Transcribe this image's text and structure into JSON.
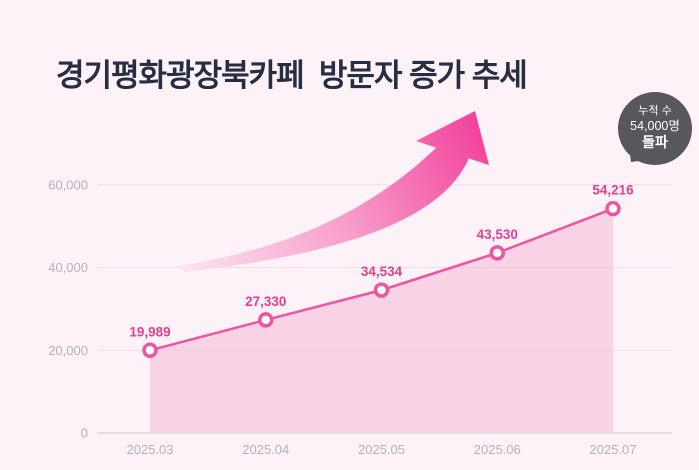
{
  "title": "경기평화광장북카페  방문자 증가 추세",
  "badge": {
    "line1": "누적 수",
    "line2": "54,000명",
    "line3": "돌파"
  },
  "chart_data": {
    "type": "line",
    "categories": [
      "2025.03",
      "2025.04",
      "2025.05",
      "2025.06",
      "2025.07"
    ],
    "values": [
      19989,
      27330,
      34534,
      43530,
      54216
    ],
    "value_labels": [
      "19,989",
      "27,330",
      "34,534",
      "43,530",
      "54,216"
    ],
    "yticks": [
      0,
      20000,
      40000,
      60000
    ],
    "ytick_labels": [
      "0",
      "20,000",
      "40,000",
      "60,000"
    ],
    "ylim": [
      0,
      60000
    ],
    "title": "경기평화광장북카페 방문자 증가 추세",
    "xlabel": "",
    "ylabel": "",
    "grid": true,
    "legend": false,
    "area_fill_under_line": true,
    "annotations": [
      "upward curved growth arrow",
      "badge: 누적 수 54,000명 돌파"
    ]
  },
  "colors": {
    "background": "#fdf2f8",
    "title_text": "#272e41",
    "line": "#ee55a0",
    "marker_fill": "#ffffff",
    "area_fill": "#f7b8d7",
    "value_label": "#e2418a",
    "axis_label": "#b5b2b7",
    "gridline": "#e8e4e8",
    "axis_line": "#d6d2d6",
    "badge_bg": "#58575c",
    "badge_text": "#ffffff",
    "arrow_start": "#fce6f1",
    "arrow_mid": "#f79fcb",
    "arrow_end": "#f2419c"
  }
}
